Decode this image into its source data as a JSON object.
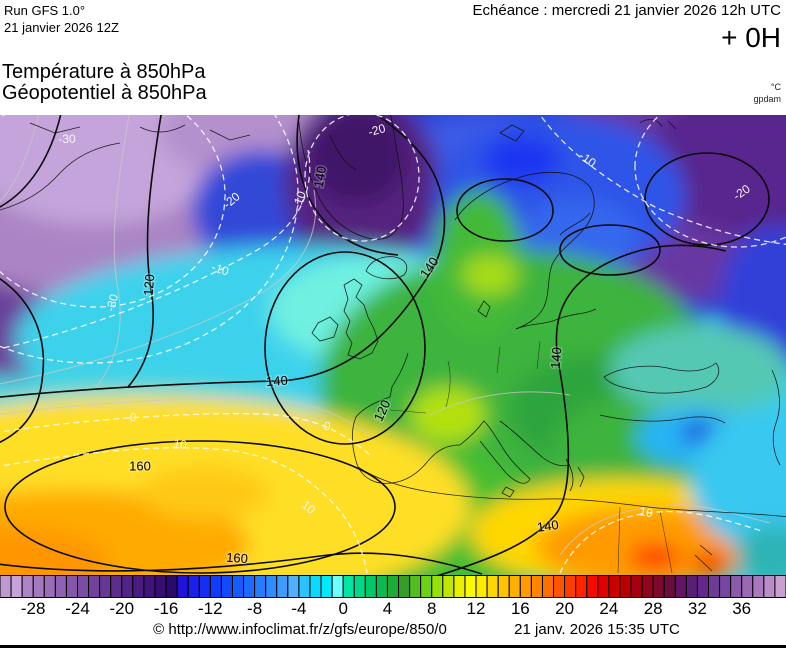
{
  "header": {
    "model_line1": "Run GFS 1.0°",
    "model_line2": "21 janvier 2026 12Z",
    "validity": "Echéance : mercredi 21 janvier 2026 12h UTC",
    "lead_time": "+ 0H",
    "param_line1": "Température à 850hPa",
    "param_line2": "Géopotentiel à 850hPa",
    "unit_temperature": "°C",
    "unit_geopotential": "gpdam"
  },
  "map": {
    "geo_contour_labels": [
      "160",
      "160",
      "140",
      "140",
      "140",
      "140",
      "140",
      "120",
      "120"
    ],
    "temp_contour_labels": [
      "-30",
      "-30",
      "-20",
      "-20",
      "-20",
      "-10",
      "-10",
      "-10",
      "0",
      "0",
      "10",
      "10",
      "10"
    ]
  },
  "colorbar": {
    "unit": "°C",
    "min": -31,
    "max": 40,
    "step": 1,
    "ticks": [
      -28,
      -24,
      -20,
      -16,
      -12,
      -8,
      -4,
      0,
      4,
      8,
      12,
      16,
      20,
      24,
      28,
      32,
      36
    ],
    "colors": [
      "#bd98d1",
      "#c6a2da",
      "#ad84c6",
      "#a378bf",
      "#996db8",
      "#8f62b1",
      "#8557aa",
      "#7b4ca3",
      "#71419c",
      "#673795",
      "#5d2d8e",
      "#532487",
      "#491c80",
      "#3f1579",
      "#350f72",
      "#2b0a6b",
      "#1f12dc",
      "#1a20e8",
      "#152ef2",
      "#103cfa",
      "#104cfd",
      "#155cff",
      "#1a6cff",
      "#247cff",
      "#2e8cff",
      "#3d9cff",
      "#50b0ff",
      "#28c4ff",
      "#0ad8ff",
      "#00eaff",
      "#6effff",
      "#00e6a5",
      "#00d787",
      "#00c869",
      "#0ab950",
      "#1eaa37",
      "#32a028",
      "#50be1e",
      "#6ed214",
      "#96e10a",
      "#bee600",
      "#e6f000",
      "#fafa00",
      "#ffeb00",
      "#ffd700",
      "#ffc300",
      "#ffaf00",
      "#ff9b00",
      "#ff8700",
      "#ff6e00",
      "#ff5500",
      "#ff3c00",
      "#ff2300",
      "#f50a00",
      "#e10000",
      "#cd0000",
      "#b90000",
      "#a5000f",
      "#91051e",
      "#7d0a2d",
      "#690f3c",
      "#641464",
      "#5a1e78",
      "#64288c",
      "#6e3c96",
      "#7846a0",
      "#8c5aaa",
      "#9b69b4",
      "#aa78be",
      "#b98cc8",
      "#c8a0d2"
    ]
  },
  "footer": {
    "source": "© http://www.infoclimat.fr/z/gfs/europe/850/0",
    "generated": "21 janv. 2026 15:35 UTC"
  }
}
